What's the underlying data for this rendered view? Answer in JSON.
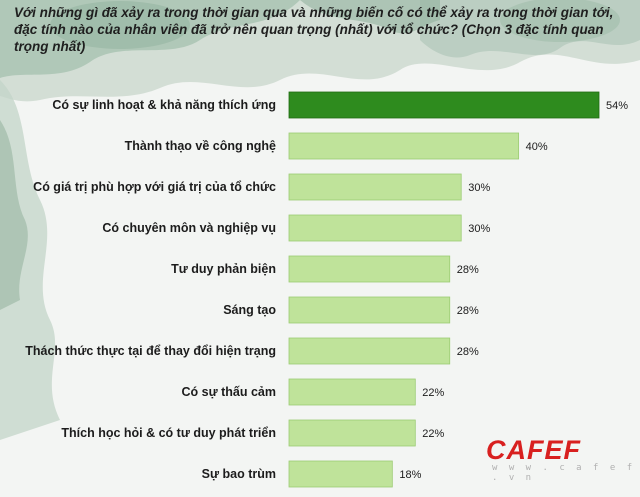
{
  "header": {
    "question": "Với những gì đã xảy ra trong thời gian qua và những biến cố có thể xảy ra trong thời gian tới, đặc tính nào của nhân viên đã trở nên quan trọng (nhất) với tổ chức? (Chọn 3 đặc tính quan trọng nhất)"
  },
  "chart_data": {
    "type": "bar",
    "orientation": "horizontal",
    "categories": [
      "Có sự linh hoạt & khả năng thích ứng",
      "Thành thạo về công nghệ",
      "Có giá trị phù hợp với giá trị của tổ chức",
      "Có chuyên môn và nghiệp vụ",
      "Tư duy phản biện",
      "Sáng tạo",
      "Thách thức thực tại để thay đổi hiện trạng",
      "Có sự thấu cảm",
      "Thích học hỏi & có tư duy phát triển",
      "Sự bao trùm"
    ],
    "values": [
      54,
      40,
      30,
      30,
      28,
      28,
      28,
      22,
      22,
      18
    ],
    "value_labels": [
      "54%",
      "40%",
      "30%",
      "30%",
      "28%",
      "28%",
      "28%",
      "22%",
      "22%",
      "18%"
    ],
    "unit": "%",
    "xlim": [
      0,
      54
    ],
    "grid": false,
    "legend": "none",
    "colors": {
      "highlight": "#2e8b1e",
      "highlight_border": "#1f6b12",
      "bar": "#bfe39a",
      "bar_border": "#9ccc73"
    }
  },
  "watermark": {
    "brand": "CAFEF",
    "url": "w w w . c a f e f . v n"
  }
}
